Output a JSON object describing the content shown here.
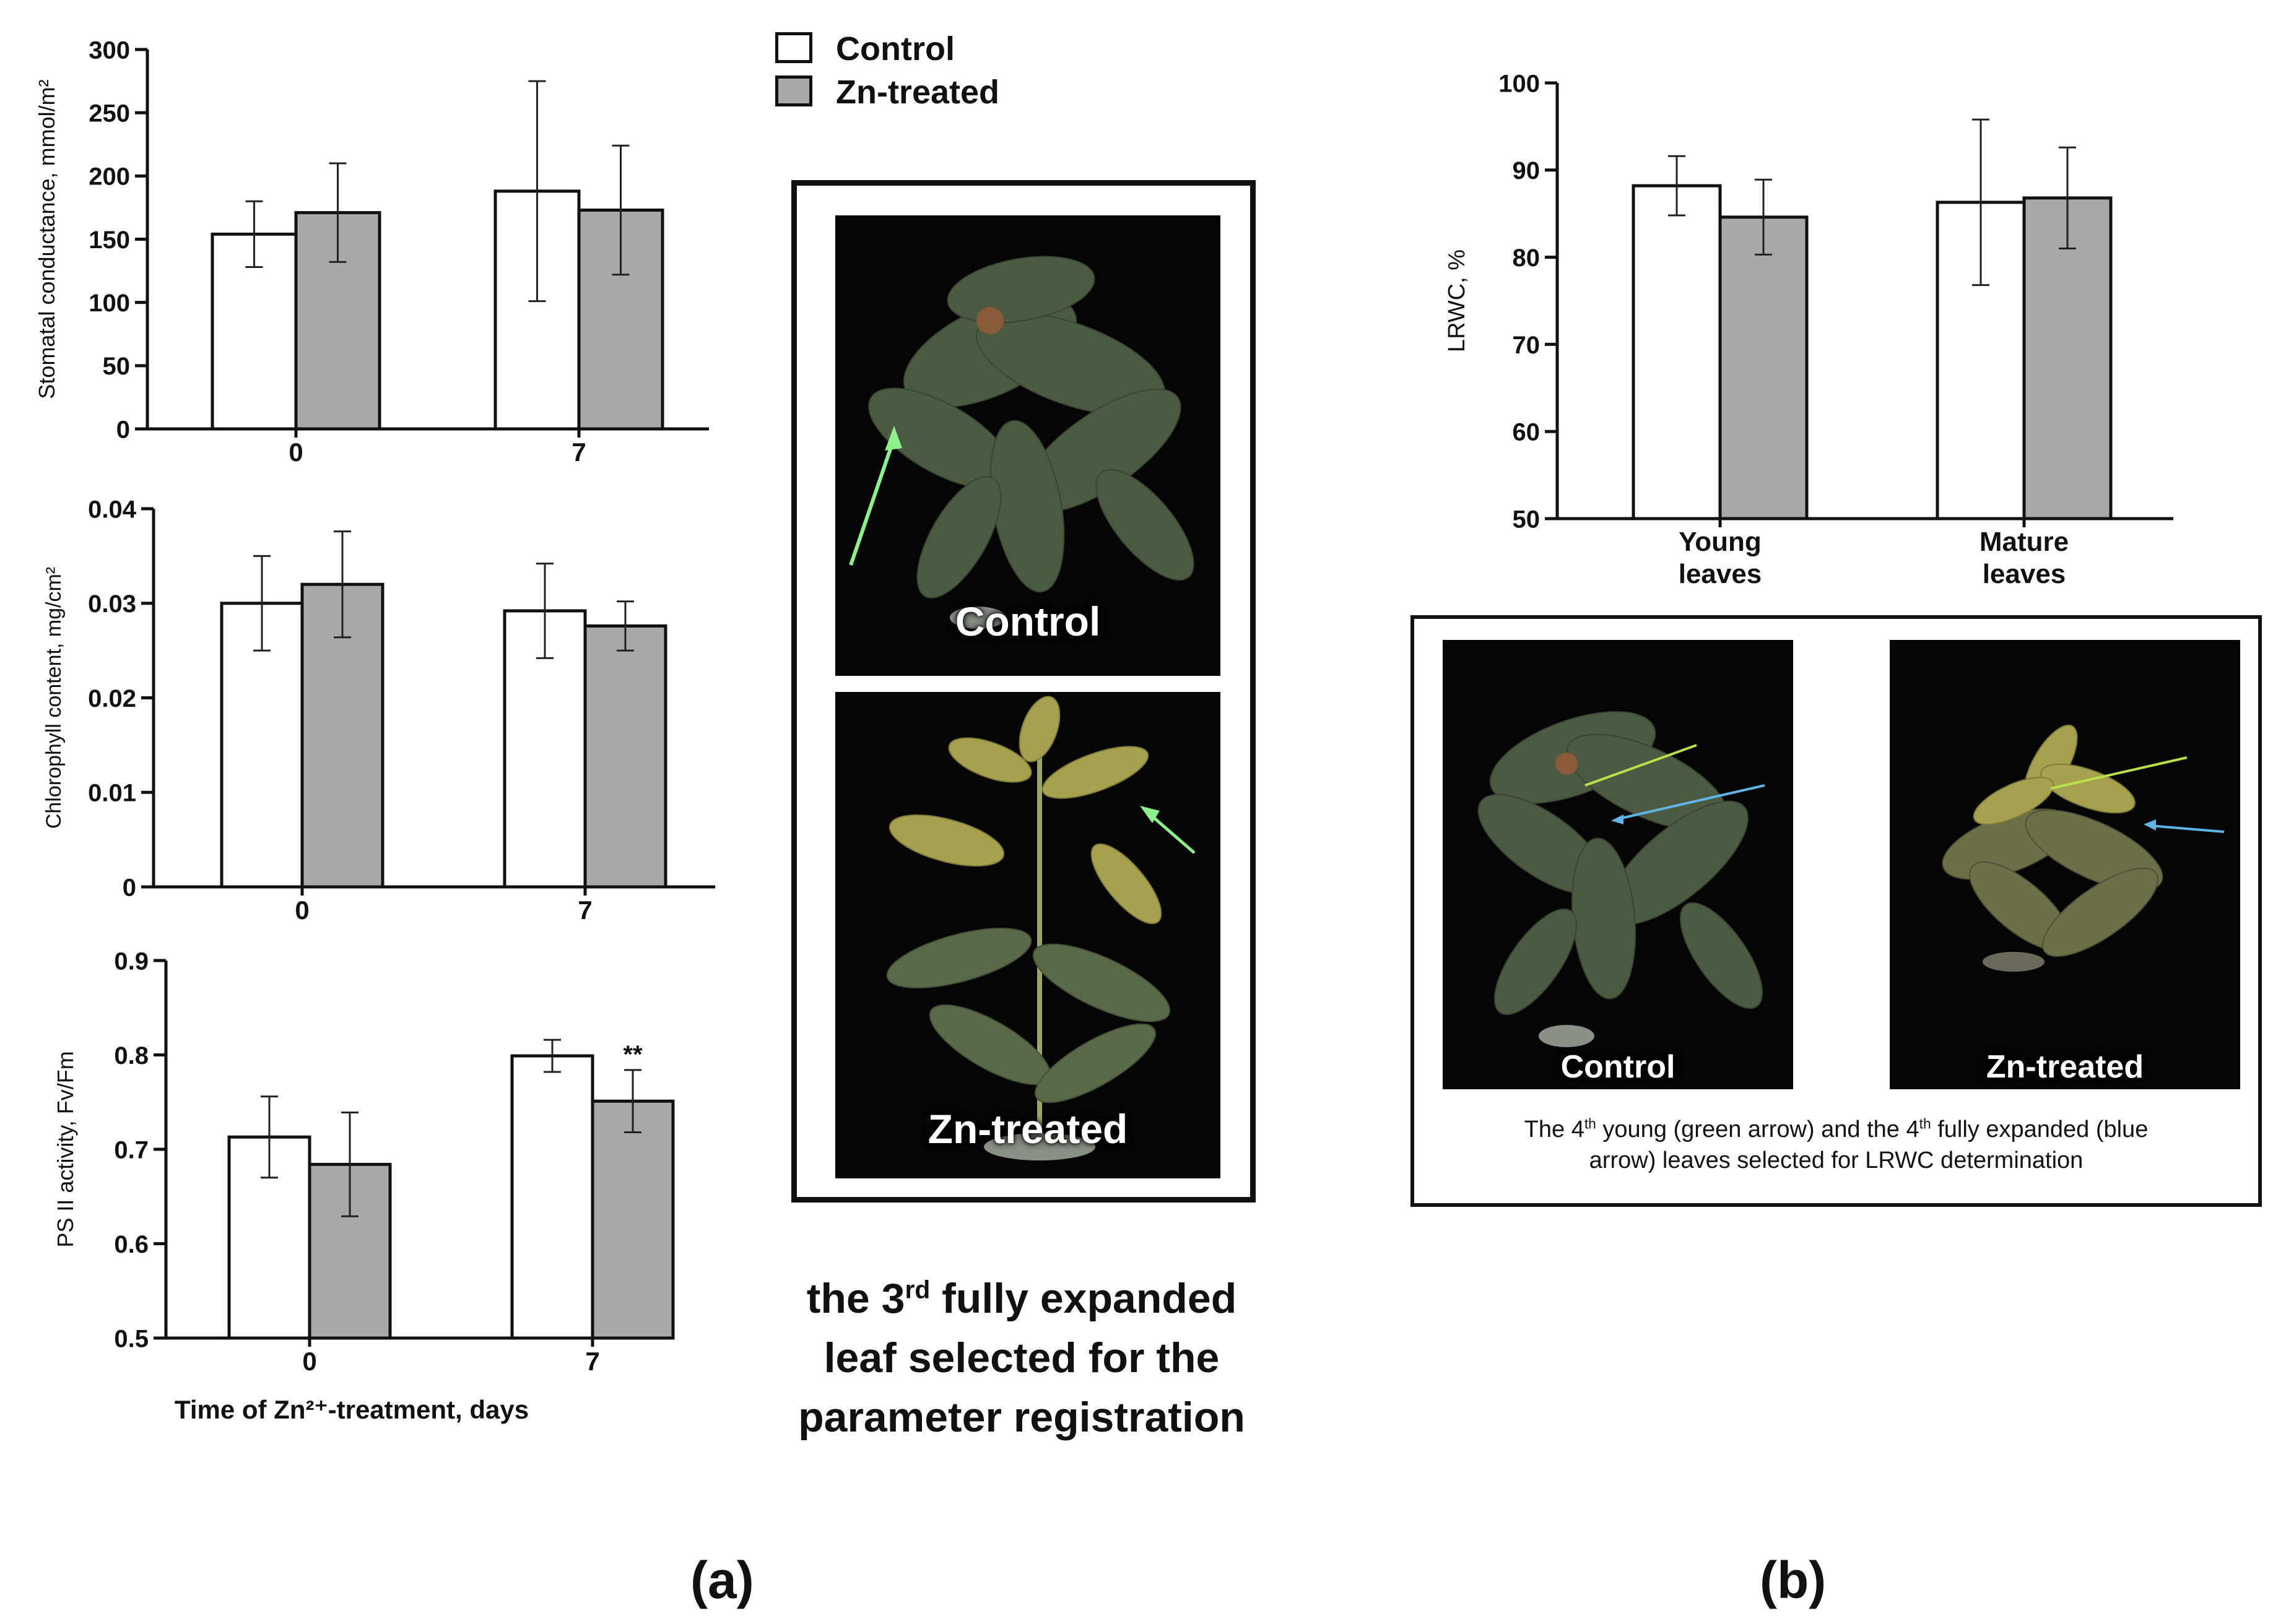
{
  "legend": {
    "control": "Control",
    "zn_treated": "Zn-treated",
    "colors": {
      "control": "#ffffff",
      "zn_treated": "#a9a9a9",
      "outline": "#111111"
    }
  },
  "chart_data": [
    {
      "id": "stomatal",
      "type": "bar",
      "title": "",
      "xlabel": "",
      "ylabel": "Stomatal conductance, mmol/m²",
      "categories": [
        "0",
        "7"
      ],
      "ylim": [
        0,
        300
      ],
      "yticks": [
        "0",
        "50",
        "100",
        "150",
        "200",
        "250",
        "300"
      ],
      "series": [
        {
          "name": "Control",
          "values": [
            154,
            188
          ],
          "errors": [
            26,
            87
          ]
        },
        {
          "name": "Zn-treated",
          "values": [
            171,
            173
          ],
          "errors": [
            39,
            51
          ]
        }
      ],
      "annotations": []
    },
    {
      "id": "chlorophyll",
      "type": "bar",
      "title": "",
      "xlabel": "",
      "ylabel": "Chlorophyll content, mg/cm²",
      "categories": [
        "0",
        "7"
      ],
      "ylim": [
        0,
        0.04
      ],
      "yticks": [
        "0",
        "0.01",
        "0.02",
        "0.03",
        "0.04"
      ],
      "series": [
        {
          "name": "Control",
          "values": [
            0.03,
            0.0292
          ],
          "errors": [
            0.005,
            0.005
          ]
        },
        {
          "name": "Zn-treated",
          "values": [
            0.032,
            0.0276
          ],
          "errors": [
            0.0056,
            0.0026
          ]
        }
      ],
      "annotations": []
    },
    {
      "id": "psii",
      "type": "bar",
      "title": "",
      "xlabel": "Time of Zn²⁺-treatment, days",
      "ylabel": "PS II activity, Fv/Fm",
      "categories": [
        "0",
        "7"
      ],
      "ylim": [
        0.5,
        0.9
      ],
      "yticks": [
        "0.5",
        "0.6",
        "0.7",
        "0.8",
        "0.9"
      ],
      "series": [
        {
          "name": "Control",
          "values": [
            0.713,
            0.799
          ],
          "errors": [
            0.043,
            0.017
          ]
        },
        {
          "name": "Zn-treated",
          "values": [
            0.684,
            0.751
          ],
          "errors": [
            0.055,
            0.033
          ]
        }
      ],
      "annotations": [
        {
          "category": "7",
          "series": "Zn-treated",
          "text": "**"
        }
      ]
    },
    {
      "id": "lrwc",
      "type": "bar",
      "title": "",
      "xlabel": "",
      "ylabel": "LRWC, %",
      "categories": [
        "Young leaves",
        "Mature leaves"
      ],
      "category_lines": [
        [
          "Young",
          "leaves"
        ],
        [
          "Mature",
          "leaves"
        ]
      ],
      "ylim": [
        50,
        100
      ],
      "yticks": [
        "50",
        "60",
        "70",
        "80",
        "90",
        "100"
      ],
      "series": [
        {
          "name": "Control",
          "values": [
            88.2,
            86.3
          ],
          "errors": [
            3.4,
            9.5
          ]
        },
        {
          "name": "Zn-treated",
          "values": [
            84.6,
            86.8
          ],
          "errors": [
            4.3,
            5.8
          ]
        }
      ],
      "annotations": []
    }
  ],
  "photos_a": {
    "control_label": "Control",
    "zn_label": "Zn-treated"
  },
  "caption_a": {
    "line1_pre": "the 3",
    "line1_sup": "rd",
    "line1_post": " fully expanded",
    "line2": "leaf selected  for the",
    "line3": "parameter registration"
  },
  "photos_b": {
    "control_label": "Control",
    "zn_label": "Zn-treated"
  },
  "caption_b": {
    "part1": "The 4",
    "sup1": "th",
    "part2": " young (green arrow) and the 4",
    "sup2": "th",
    "part3": " fully expanded (blue",
    "line2": "arrow) leaves selected for LRWC determination"
  },
  "panel_letters": {
    "a": "(a)",
    "b": "(b)"
  }
}
